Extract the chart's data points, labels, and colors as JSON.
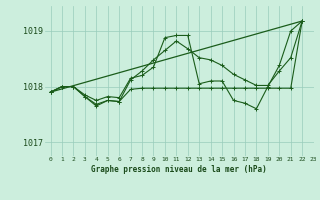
{
  "title": "Graphe pression niveau de la mer (hPa)",
  "background_color": "#cceedd",
  "grid_color": "#99ccbb",
  "line_color": "#1a5c1a",
  "xlim": [
    -0.5,
    23
  ],
  "ylim": [
    1016.75,
    1019.45
  ],
  "yticks": [
    1017,
    1018,
    1019
  ],
  "xticks": [
    0,
    1,
    2,
    3,
    4,
    5,
    6,
    7,
    8,
    9,
    10,
    11,
    12,
    13,
    14,
    15,
    16,
    17,
    18,
    19,
    20,
    21,
    22,
    23
  ],
  "series1": [
    1017.9,
    1018.0,
    1018.0,
    1017.85,
    1017.75,
    1017.82,
    1017.8,
    1018.15,
    1018.2,
    1018.35,
    1018.88,
    1018.92,
    1018.92,
    1018.05,
    1018.1,
    1018.1,
    1017.75,
    1017.7,
    1017.6,
    1018.0,
    1018.38,
    1019.0,
    1019.18
  ],
  "series2": [
    1017.9,
    1018.0,
    1018.0,
    1017.82,
    1017.65,
    1017.75,
    1017.73,
    1017.95,
    1017.97,
    1017.97,
    1017.97,
    1017.97,
    1017.97,
    1017.97,
    1017.97,
    1017.97,
    1017.97,
    1017.97,
    1017.97,
    1017.97,
    1017.97,
    1017.97,
    1019.18
  ],
  "series3": [
    1017.9,
    1018.0,
    1018.0,
    1017.82,
    1017.68,
    1017.75,
    1017.73,
    1018.12,
    1018.28,
    1018.48,
    1018.65,
    1018.82,
    1018.68,
    1018.52,
    1018.48,
    1018.38,
    1018.22,
    1018.12,
    1018.02,
    1018.02,
    1018.28,
    1018.52,
    1019.18
  ],
  "trend": [
    1017.9,
    1019.18
  ]
}
